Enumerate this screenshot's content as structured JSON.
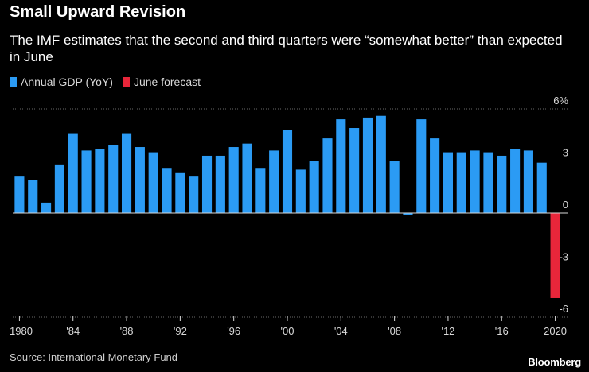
{
  "chart_data": {
    "type": "bar",
    "title": "Small Upward Revision",
    "subtitle": "The IMF estimates that the second and third quarters were “somewhat better” than expected in June",
    "xlabel": "",
    "ylabel": "",
    "ylim": [
      -6,
      6
    ],
    "yticks": [
      {
        "value": 6,
        "label": "6%"
      },
      {
        "value": 3,
        "label": "3"
      },
      {
        "value": 0,
        "label": "0"
      },
      {
        "value": -3,
        "label": "-3"
      },
      {
        "value": -6,
        "label": "-6"
      }
    ],
    "xticks": [
      {
        "year": 1980,
        "label": "1980"
      },
      {
        "year": 1984,
        "label": "'84"
      },
      {
        "year": 1988,
        "label": "'88"
      },
      {
        "year": 1992,
        "label": "'92"
      },
      {
        "year": 1996,
        "label": "'96"
      },
      {
        "year": 2000,
        "label": "'00"
      },
      {
        "year": 2004,
        "label": "'04"
      },
      {
        "year": 2008,
        "label": "'08"
      },
      {
        "year": 2012,
        "label": "'12"
      },
      {
        "year": 2016,
        "label": "'16"
      },
      {
        "year": 2020,
        "label": "2020"
      }
    ],
    "legend": [
      {
        "label": "Annual GDP (YoY)",
        "color": "#2b9bf4"
      },
      {
        "label": "June forecast",
        "color": "#e8263a"
      }
    ],
    "series": [
      {
        "name": "Annual GDP (YoY)",
        "color": "#2b9bf4",
        "x": [
          1980,
          1981,
          1982,
          1983,
          1984,
          1985,
          1986,
          1987,
          1988,
          1989,
          1990,
          1991,
          1992,
          1993,
          1994,
          1995,
          1996,
          1997,
          1998,
          1999,
          2000,
          2001,
          2002,
          2003,
          2004,
          2005,
          2006,
          2007,
          2008,
          2009,
          2010,
          2011,
          2012,
          2013,
          2014,
          2015,
          2016,
          2017,
          2018,
          2019
        ],
        "values": [
          2.1,
          1.9,
          0.6,
          2.8,
          4.6,
          3.6,
          3.7,
          3.9,
          4.6,
          3.8,
          3.5,
          2.6,
          2.3,
          2.1,
          3.3,
          3.3,
          3.8,
          4.0,
          2.6,
          3.6,
          4.8,
          2.5,
          3.0,
          4.3,
          5.4,
          4.9,
          5.5,
          5.6,
          3.0,
          -0.1,
          5.4,
          4.3,
          3.5,
          3.5,
          3.6,
          3.5,
          3.3,
          3.7,
          3.6,
          2.9
        ]
      },
      {
        "name": "June forecast",
        "color": "#e8263a",
        "x": [
          2020
        ],
        "values": [
          -4.9
        ]
      }
    ],
    "grid": "dotted horizontal",
    "legend_position": "top-left",
    "source": "Source: International Monetary Fund",
    "brand": "Bloomberg"
  }
}
